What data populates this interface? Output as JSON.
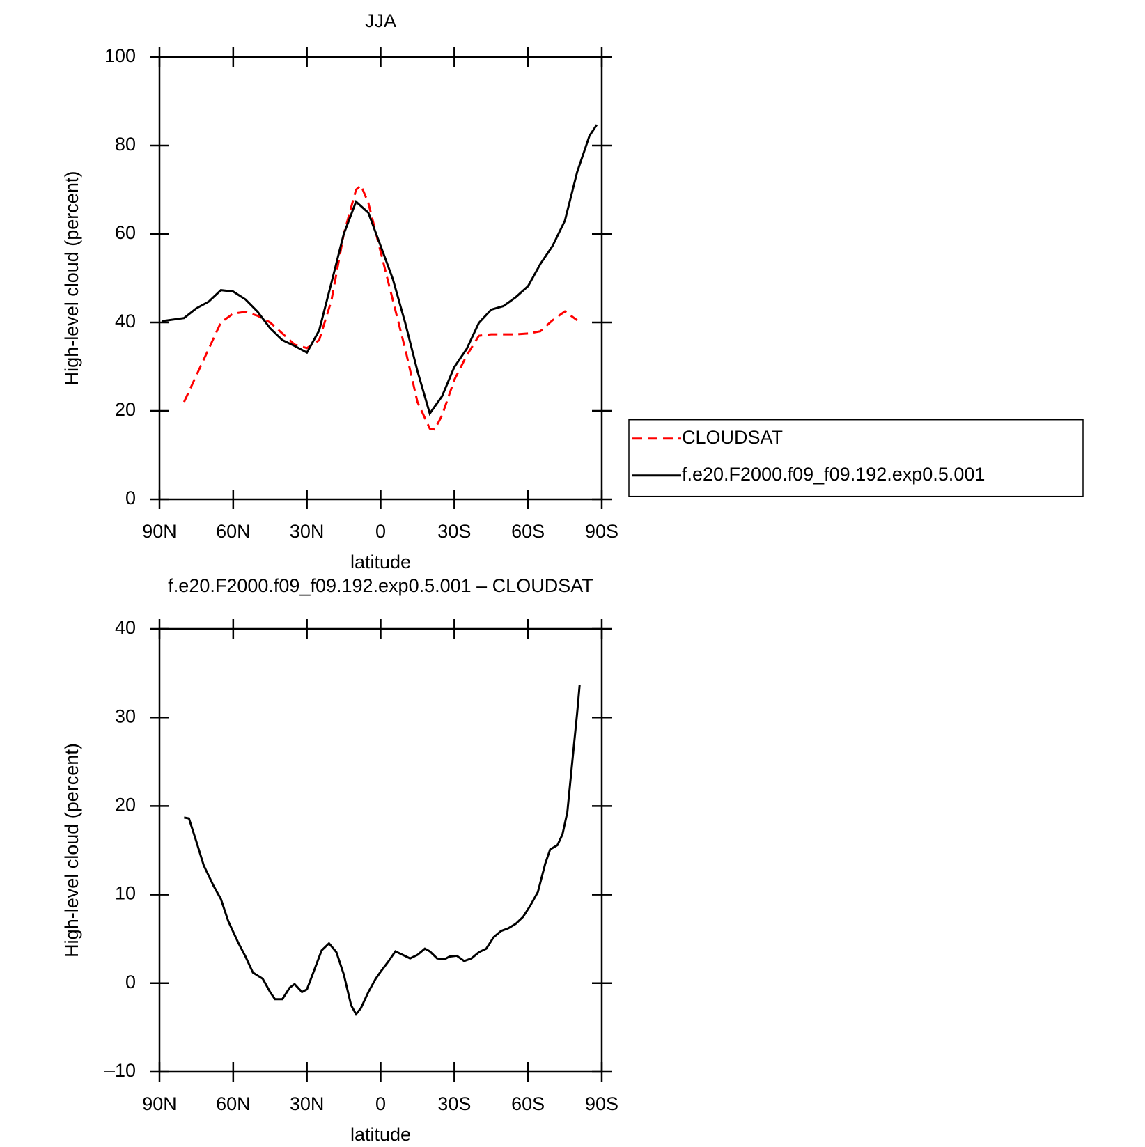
{
  "chart_data": [
    {
      "type": "line",
      "title": "JJA",
      "xlabel": "latitude",
      "ylabel": "High-level cloud (percent)",
      "xlim": [
        90,
        -90
      ],
      "xticks": [
        {
          "value": 90,
          "label": "90N"
        },
        {
          "value": 60,
          "label": "60N"
        },
        {
          "value": 30,
          "label": "30N"
        },
        0,
        {
          "value": -30,
          "label": "30S"
        },
        {
          "value": -60,
          "label": "60S"
        },
        {
          "value": -90,
          "label": "90S"
        }
      ],
      "ylim": [
        0,
        100
      ],
      "yticks": [
        0,
        20,
        40,
        60,
        80,
        100
      ],
      "legend": "right",
      "series": [
        {
          "name": "CLOUDSAT",
          "color": "#ff0000",
          "style": "dashed",
          "x": [
            80,
            75,
            70,
            65,
            60,
            55,
            50,
            45,
            40,
            35,
            30,
            25,
            20,
            15,
            10,
            8,
            5,
            0,
            -5,
            -10,
            -15,
            -20,
            -22,
            -25,
            -30,
            -35,
            -40,
            -45,
            -50,
            -55,
            -60,
            -65,
            -70,
            -75,
            -80
          ],
          "values": [
            22,
            28,
            34,
            40,
            42,
            42.4,
            41.5,
            40,
            37.5,
            35,
            34.2,
            36,
            45,
            60,
            70,
            71,
            67,
            56,
            45,
            34,
            22,
            16,
            15.8,
            19,
            27,
            32.5,
            37,
            37.3,
            37.3,
            37.3,
            37.5,
            38,
            40.5,
            42.5,
            40.5
          ]
        },
        {
          "name": "f.e20.F2000.f09_f09.192.exp0.5.001",
          "color": "#000000",
          "style": "solid",
          "x": [
            89,
            80,
            75,
            70,
            65,
            60,
            55,
            50,
            45,
            40,
            35,
            30,
            25,
            20,
            15,
            10,
            5,
            0,
            -5,
            -10,
            -15,
            -20,
            -25,
            -30,
            -35,
            -40,
            -45,
            -50,
            -55,
            -60,
            -65,
            -70,
            -75,
            -80,
            -85,
            -88
          ],
          "values": [
            40.3,
            41,
            43.2,
            44.7,
            47.3,
            47,
            45.2,
            42.4,
            38.7,
            36,
            34.7,
            33.2,
            38.2,
            49,
            60,
            67.3,
            64.8,
            57.3,
            49.8,
            39.9,
            29,
            19.4,
            23.3,
            29.9,
            34,
            39.9,
            42.9,
            43.7,
            45.7,
            48.2,
            53.2,
            57.3,
            63,
            74,
            82.2,
            84.7
          ]
        }
      ]
    },
    {
      "type": "line",
      "title": "f.e20.F2000.f09_f09.192.exp0.5.001 – CLOUDSAT",
      "xlabel": "latitude",
      "ylabel": "High-level cloud (percent)",
      "xlim": [
        90,
        -90
      ],
      "xticks": [
        {
          "value": 90,
          "label": "90N"
        },
        {
          "value": 60,
          "label": "60N"
        },
        {
          "value": 30,
          "label": "30N"
        },
        0,
        {
          "value": -30,
          "label": "30S"
        },
        {
          "value": -60,
          "label": "60S"
        },
        {
          "value": -90,
          "label": "90S"
        }
      ],
      "ylim": [
        -10,
        40
      ],
      "yticks": [
        {
          "value": -10,
          "label": "–10"
        },
        0,
        10,
        20,
        30,
        40
      ],
      "series": [
        {
          "color": "#000000",
          "style": "solid",
          "x": [
            80,
            78,
            75,
            72,
            68,
            65,
            62,
            58,
            55,
            52,
            48,
            45,
            43,
            40,
            37,
            35,
            32,
            30,
            27,
            24,
            21,
            18,
            15,
            12,
            10,
            8,
            5,
            2,
            0,
            -3,
            -6,
            -9,
            -12,
            -15,
            -18,
            -20,
            -23,
            -26,
            -28,
            -31,
            -34,
            -37,
            -40,
            -43,
            -46,
            -49,
            -52,
            -55,
            -58,
            -61,
            -64,
            -67,
            -69,
            -72,
            -74,
            -76,
            -78,
            -80,
            -81
          ],
          "values": [
            18.7,
            18.6,
            16,
            13.3,
            11,
            9.5,
            7,
            4.6,
            3,
            1.2,
            0.5,
            -1,
            -1.8,
            -1.8,
            -0.5,
            -0.1,
            -1,
            -0.7,
            1.5,
            3.7,
            4.5,
            3.5,
            1,
            -2.5,
            -3.5,
            -2.8,
            -1,
            0.5,
            1.3,
            2.4,
            3.6,
            3.2,
            2.8,
            3.2,
            3.9,
            3.6,
            2.8,
            2.7,
            3,
            3.1,
            2.5,
            2.8,
            3.5,
            3.9,
            5.2,
            5.9,
            6.2,
            6.7,
            7.5,
            8.8,
            10.3,
            13.5,
            15.1,
            15.6,
            16.8,
            19.3,
            25,
            30.5,
            33.7
          ]
        }
      ]
    }
  ]
}
